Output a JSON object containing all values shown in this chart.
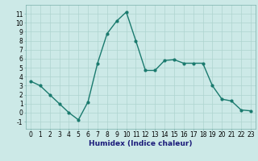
{
  "x": [
    0,
    1,
    2,
    3,
    4,
    5,
    6,
    7,
    8,
    9,
    10,
    11,
    12,
    13,
    14,
    15,
    16,
    17,
    18,
    19,
    20,
    21,
    22,
    23
  ],
  "y": [
    3.5,
    3.0,
    2.0,
    1.0,
    0.0,
    -0.8,
    1.2,
    5.5,
    8.8,
    10.2,
    11.2,
    8.0,
    4.7,
    4.7,
    5.8,
    5.9,
    5.5,
    5.5,
    5.5,
    3.0,
    1.5,
    1.3,
    0.3,
    0.2
  ],
  "line_color": "#1a7a6e",
  "marker": "o",
  "marker_size": 2,
  "bg_color": "#cce9e7",
  "grid_color": "#aed4d0",
  "xlabel": "Humidex (Indice chaleur)",
  "xlim": [
    -0.5,
    23.5
  ],
  "ylim": [
    -1.8,
    12.0
  ],
  "xticks": [
    0,
    1,
    2,
    3,
    4,
    5,
    6,
    7,
    8,
    9,
    10,
    11,
    12,
    13,
    14,
    15,
    16,
    17,
    18,
    19,
    20,
    21,
    22,
    23
  ],
  "yticks": [
    -1,
    0,
    1,
    2,
    3,
    4,
    5,
    6,
    7,
    8,
    9,
    10,
    11
  ],
  "tick_fontsize": 5.5,
  "xlabel_fontsize": 6.5,
  "linewidth": 1.0
}
